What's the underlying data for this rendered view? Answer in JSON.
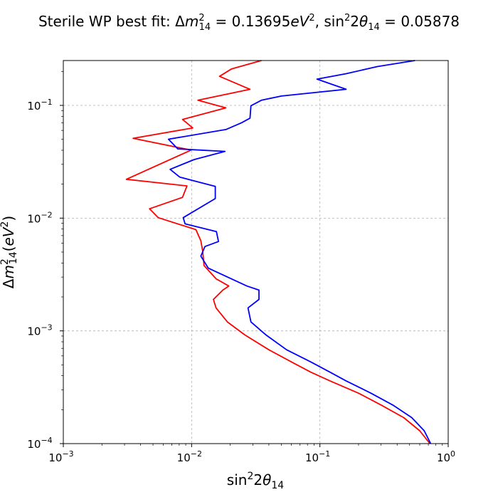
{
  "chart_data": {
    "type": "line",
    "title": "Sterile WP best fit: Δm²₁₄ = 0.13695eV², sin²2θ₁₄ = 0.05878",
    "title_parts": {
      "prefix": "Sterile WP best fit: Δ",
      "dm_value": "0.13695",
      "sin_value": "0.05878"
    },
    "xlabel": "sin²2θ₁₄",
    "ylabel": "Δm²₁₄(eV²)",
    "xscale": "log",
    "yscale": "log",
    "xlim": [
      0.001,
      1
    ],
    "ylim": [
      0.0001,
      0.25
    ],
    "x_ticks": [
      {
        "value": 0.001,
        "base": "10",
        "exp": "−3"
      },
      {
        "value": 0.01,
        "base": "10",
        "exp": "−2"
      },
      {
        "value": 0.1,
        "base": "10",
        "exp": "−1"
      },
      {
        "value": 1,
        "base": "10",
        "exp": "0"
      }
    ],
    "y_ticks": [
      {
        "value": 0.0001,
        "base": "10",
        "exp": "−4"
      },
      {
        "value": 0.001,
        "base": "10",
        "exp": "−3"
      },
      {
        "value": 0.01,
        "base": "10",
        "exp": "−2"
      },
      {
        "value": 0.1,
        "base": "10",
        "exp": "−1"
      }
    ],
    "grid": true,
    "series": [
      {
        "color": "#ff0000",
        "points": [
          [
            0.72,
            0.0001
          ],
          [
            0.6,
            0.00013
          ],
          [
            0.45,
            0.00017
          ],
          [
            0.3,
            0.00022
          ],
          [
            0.2,
            0.00028
          ],
          [
            0.12,
            0.00036
          ],
          [
            0.085,
            0.00043
          ],
          [
            0.06,
            0.00053
          ],
          [
            0.04,
            0.00068
          ],
          [
            0.026,
            0.00092
          ],
          [
            0.019,
            0.0012
          ],
          [
            0.0155,
            0.0016
          ],
          [
            0.0148,
            0.0019
          ],
          [
            0.0175,
            0.0023
          ],
          [
            0.0195,
            0.0025
          ],
          [
            0.0155,
            0.0029
          ],
          [
            0.0125,
            0.0038
          ],
          [
            0.0122,
            0.0051
          ],
          [
            0.0118,
            0.0063
          ],
          [
            0.0108,
            0.0079
          ],
          [
            0.0055,
            0.0101
          ],
          [
            0.0047,
            0.0121
          ],
          [
            0.0085,
            0.0153
          ],
          [
            0.0092,
            0.0193
          ],
          [
            0.0031,
            0.0221
          ],
          [
            0.0099,
            0.0401
          ],
          [
            0.0035,
            0.0511
          ],
          [
            0.0102,
            0.0631
          ],
          [
            0.0085,
            0.0751
          ],
          [
            0.0185,
            0.0951
          ],
          [
            0.0112,
            0.111
          ],
          [
            0.0285,
            0.139
          ],
          [
            0.0165,
            0.181
          ],
          [
            0.0205,
            0.211
          ],
          [
            0.035,
            0.25
          ]
        ]
      },
      {
        "color": "#0000ff",
        "points": [
          [
            0.73,
            0.0001
          ],
          [
            0.65,
            0.00013
          ],
          [
            0.52,
            0.00017
          ],
          [
            0.37,
            0.00022
          ],
          [
            0.25,
            0.00028
          ],
          [
            0.16,
            0.00036
          ],
          [
            0.12,
            0.00043
          ],
          [
            0.085,
            0.00053
          ],
          [
            0.055,
            0.00068
          ],
          [
            0.038,
            0.00092
          ],
          [
            0.029,
            0.0012
          ],
          [
            0.0275,
            0.0016
          ],
          [
            0.0335,
            0.0019
          ],
          [
            0.0335,
            0.0023
          ],
          [
            0.027,
            0.0025
          ],
          [
            0.0135,
            0.0036
          ],
          [
            0.0118,
            0.0046
          ],
          [
            0.0127,
            0.0056
          ],
          [
            0.0162,
            0.0062
          ],
          [
            0.0156,
            0.0076
          ],
          [
            0.0089,
            0.0089
          ],
          [
            0.0086,
            0.0101
          ],
          [
            0.0153,
            0.0149
          ],
          [
            0.0153,
            0.0191
          ],
          [
            0.0081,
            0.0231
          ],
          [
            0.0068,
            0.0271
          ],
          [
            0.0105,
            0.0331
          ],
          [
            0.0182,
            0.0391
          ],
          [
            0.0078,
            0.0411
          ],
          [
            0.0066,
            0.0501
          ],
          [
            0.0185,
            0.0611
          ],
          [
            0.0245,
            0.0701
          ],
          [
            0.0285,
            0.0771
          ],
          [
            0.029,
            0.0991
          ],
          [
            0.035,
            0.111
          ],
          [
            0.05,
            0.121
          ],
          [
            0.16,
            0.139
          ],
          [
            0.095,
            0.171
          ],
          [
            0.16,
            0.191
          ],
          [
            0.28,
            0.221
          ],
          [
            0.55,
            0.25
          ]
        ]
      }
    ]
  }
}
